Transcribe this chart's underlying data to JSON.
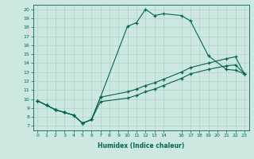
{
  "xlabel": "Humidex (Indice chaleur)",
  "background_color": "#cce8e0",
  "line_color": "#006655",
  "grid_color": "#aaccc4",
  "xlim": [
    -0.5,
    23.5
  ],
  "ylim": [
    6.5,
    20.5
  ],
  "xticks": [
    0,
    1,
    2,
    3,
    4,
    5,
    6,
    7,
    8,
    9,
    10,
    11,
    12,
    13,
    14,
    16,
    17,
    18,
    19,
    20,
    21,
    22,
    23
  ],
  "yticks": [
    7,
    8,
    9,
    10,
    11,
    12,
    13,
    14,
    15,
    16,
    17,
    18,
    19,
    20
  ],
  "curve1_x": [
    0,
    1,
    2,
    3,
    4,
    5,
    6,
    7,
    10,
    11,
    12,
    13,
    14,
    16,
    17,
    19,
    21,
    22,
    23
  ],
  "curve1_y": [
    9.8,
    9.3,
    8.8,
    8.5,
    8.2,
    7.3,
    7.7,
    10.2,
    18.1,
    18.5,
    20.0,
    19.3,
    19.5,
    19.3,
    18.7,
    14.8,
    13.3,
    13.2,
    12.8
  ],
  "curve2_x": [
    0,
    1,
    2,
    3,
    4,
    5,
    6,
    7,
    10,
    11,
    12,
    13,
    14,
    16,
    17,
    19,
    21,
    22,
    23
  ],
  "curve2_y": [
    9.8,
    9.3,
    8.8,
    8.5,
    8.2,
    7.3,
    7.7,
    10.2,
    10.8,
    11.1,
    11.5,
    11.8,
    12.2,
    13.0,
    13.5,
    14.0,
    14.5,
    14.7,
    12.8
  ],
  "curve3_x": [
    0,
    1,
    2,
    3,
    4,
    5,
    6,
    7,
    10,
    11,
    12,
    13,
    14,
    16,
    17,
    19,
    21,
    22,
    23
  ],
  "curve3_y": [
    9.8,
    9.3,
    8.8,
    8.5,
    8.2,
    7.3,
    7.7,
    9.7,
    10.1,
    10.4,
    10.8,
    11.1,
    11.5,
    12.3,
    12.8,
    13.3,
    13.7,
    13.8,
    12.8
  ]
}
